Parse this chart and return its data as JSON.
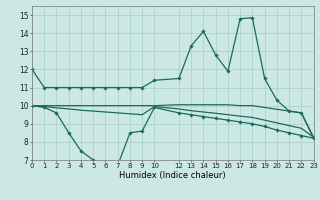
{
  "xlabel": "Humidex (Indice chaleur)",
  "bg_color": "#cce8e4",
  "grid_color": "#aacccc",
  "line_color": "#1a6b5a",
  "xlim": [
    0,
    23
  ],
  "ylim": [
    7,
    15.5
  ],
  "xticks": [
    0,
    1,
    2,
    3,
    4,
    5,
    6,
    7,
    8,
    9,
    10,
    12,
    13,
    14,
    15,
    16,
    17,
    18,
    19,
    20,
    21,
    22,
    23
  ],
  "yticks": [
    7,
    8,
    9,
    10,
    11,
    12,
    13,
    14,
    15
  ],
  "line1_x": [
    0,
    1,
    2,
    3,
    4,
    5,
    6,
    7,
    8,
    9,
    10,
    12,
    13,
    14,
    15,
    16,
    17,
    18,
    19,
    20,
    21,
    22,
    23
  ],
  "line1_y": [
    12,
    11,
    11,
    11,
    11,
    11,
    11,
    11,
    11,
    11,
    11.4,
    11.5,
    13.3,
    14.1,
    12.8,
    11.9,
    14.8,
    14.85,
    11.5,
    10.3,
    9.7,
    9.6,
    8.2
  ],
  "line2_x": [
    0,
    1,
    2,
    3,
    4,
    5,
    6,
    7,
    8,
    9,
    10,
    12,
    13,
    14,
    15,
    16,
    17,
    18,
    19,
    20,
    21,
    22,
    23
  ],
  "line2_y": [
    10,
    10,
    10,
    10,
    10,
    10,
    10,
    10,
    10,
    10,
    10,
    10.05,
    10.05,
    10.05,
    10.05,
    10.05,
    10.0,
    10.0,
    9.9,
    9.8,
    9.7,
    9.6,
    8.25
  ],
  "line3_x": [
    0,
    1,
    2,
    3,
    4,
    5,
    6,
    7,
    8,
    9,
    10,
    12,
    13,
    14,
    15,
    16,
    17,
    18,
    19,
    20,
    21,
    22,
    23
  ],
  "line3_y": [
    10,
    9.9,
    9.6,
    8.5,
    7.5,
    7.0,
    6.8,
    6.7,
    8.5,
    8.6,
    9.9,
    9.6,
    9.5,
    9.4,
    9.3,
    9.2,
    9.1,
    9.0,
    8.85,
    8.65,
    8.5,
    8.35,
    8.2
  ],
  "line4_x": [
    0,
    1,
    2,
    3,
    4,
    5,
    6,
    7,
    8,
    9,
    10,
    12,
    13,
    14,
    15,
    16,
    17,
    18,
    19,
    20,
    21,
    22,
    23
  ],
  "line4_y": [
    10,
    9.95,
    9.88,
    9.82,
    9.75,
    9.7,
    9.65,
    9.6,
    9.55,
    9.5,
    9.95,
    9.82,
    9.72,
    9.65,
    9.58,
    9.5,
    9.42,
    9.35,
    9.2,
    9.05,
    8.9,
    8.75,
    8.25
  ]
}
